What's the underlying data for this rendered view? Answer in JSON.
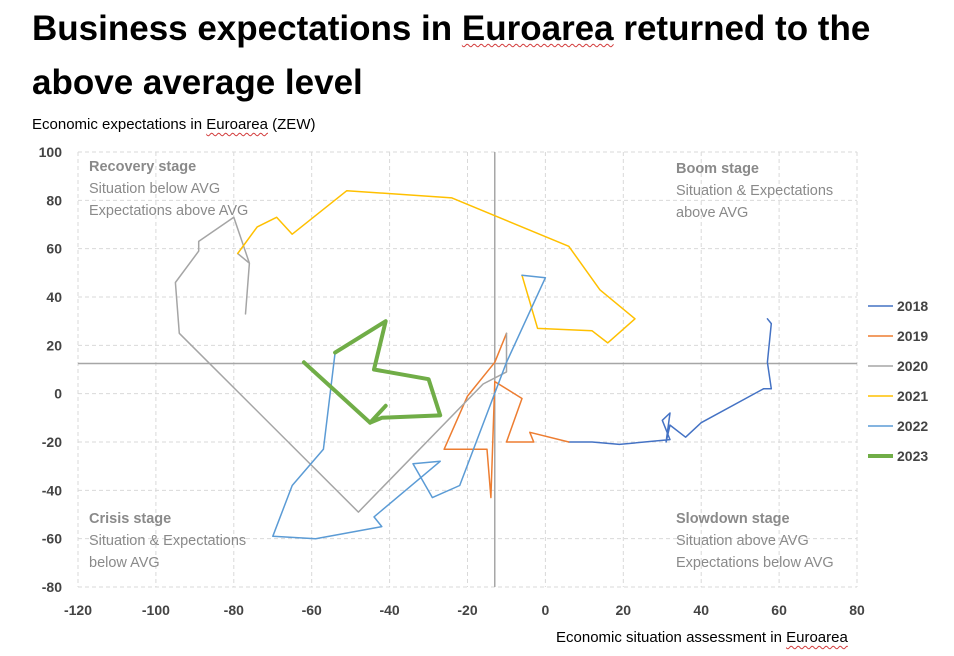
{
  "title_parts": [
    "Business expectations in ",
    "Euroarea",
    " returned to the above average level"
  ],
  "subtitle_parts": [
    "Economic expectations in ",
    "Euroarea",
    " (ZEW)"
  ],
  "xlabel_parts": [
    "Economic situation assessment in ",
    "Euroarea"
  ],
  "quadrants": {
    "recovery": {
      "title": "Recovery stage",
      "lines": [
        "Situation below AVG",
        "Expectations above AVG"
      ]
    },
    "boom": {
      "title": "Boom stage",
      "lines": [
        "Situation & Expectations",
        "above AVG"
      ]
    },
    "crisis": {
      "title": "Crisis stage",
      "lines": [
        "Situation & Expectations",
        "below AVG"
      ]
    },
    "slowdown": {
      "title": "Slowdown stage",
      "lines": [
        "Situation above AVG",
        "Expectations below AVG"
      ]
    }
  },
  "chart_data": {
    "type": "line",
    "xlabel": "Economic situation assessment in Euroarea",
    "ylabel": "Economic expectations in Euroarea (ZEW)",
    "xlim": [
      -120,
      80
    ],
    "ylim": [
      -80,
      100
    ],
    "xticks": [
      -120,
      -100,
      -80,
      -60,
      -40,
      -20,
      0,
      20,
      40,
      60,
      80
    ],
    "yticks": [
      100,
      80,
      60,
      40,
      20,
      0,
      -20,
      -40,
      -60,
      -80
    ],
    "grid": true,
    "legend_position": "right",
    "avg_lines": {
      "x": -13,
      "y": 12.5
    },
    "series": [
      {
        "name": "2018",
        "color": "#4472c4",
        "width": 1.5,
        "points": [
          [
            57,
            31
          ],
          [
            58,
            29
          ],
          [
            57,
            13
          ],
          [
            58,
            2
          ],
          [
            56,
            2
          ],
          [
            40,
            -12
          ],
          [
            36,
            -18
          ],
          [
            32,
            -13
          ],
          [
            31,
            -20
          ],
          [
            32,
            -8
          ],
          [
            30,
            -11
          ],
          [
            32,
            -19
          ],
          [
            19,
            -21
          ],
          [
            12,
            -20
          ],
          [
            6,
            -20
          ]
        ]
      },
      {
        "name": "2019",
        "color": "#ed7d31",
        "width": 1.5,
        "points": [
          [
            6,
            -20
          ],
          [
            -4,
            -16
          ],
          [
            -3,
            -20
          ],
          [
            -10,
            -20
          ],
          [
            -6,
            -2
          ],
          [
            -13,
            5
          ],
          [
            -14,
            -43
          ],
          [
            -15,
            -23
          ],
          [
            -26,
            -23
          ],
          [
            -20,
            -1
          ],
          [
            -13,
            13
          ],
          [
            -10,
            25
          ]
        ]
      },
      {
        "name": "2020",
        "color": "#a5a5a5",
        "width": 1.5,
        "points": [
          [
            -10,
            25
          ],
          [
            -10,
            9
          ],
          [
            -16,
            4
          ],
          [
            -48,
            -49
          ],
          [
            -94,
            25
          ],
          [
            -95,
            46
          ],
          [
            -89,
            59
          ],
          [
            -89,
            63
          ],
          [
            -80,
            73
          ],
          [
            -76,
            54
          ],
          [
            -77,
            33
          ],
          [
            -76,
            54
          ],
          [
            -79,
            58
          ]
        ]
      },
      {
        "name": "2021",
        "color": "#ffc000",
        "width": 1.5,
        "points": [
          [
            -79,
            58
          ],
          [
            -74,
            69
          ],
          [
            -69,
            73
          ],
          [
            -65,
            66
          ],
          [
            -51,
            84
          ],
          [
            -24,
            81
          ],
          [
            6,
            61
          ],
          [
            14,
            43
          ],
          [
            23,
            31
          ],
          [
            16,
            21
          ],
          [
            12,
            26
          ],
          [
            -2,
            27
          ],
          [
            -6,
            49
          ]
        ]
      },
      {
        "name": "2022",
        "color": "#5b9bd5",
        "width": 1.5,
        "points": [
          [
            -6,
            49
          ],
          [
            0,
            48
          ],
          [
            -10,
            13
          ],
          [
            -22,
            -38
          ],
          [
            -29,
            -43
          ],
          [
            -34,
            -29
          ],
          [
            -27,
            -28
          ],
          [
            -44,
            -51
          ],
          [
            -42,
            -55
          ],
          [
            -59,
            -60
          ],
          [
            -70,
            -59
          ],
          [
            -65,
            -38
          ],
          [
            -57,
            -23
          ],
          [
            -54,
            17
          ]
        ]
      },
      {
        "name": "2023",
        "color": "#70ad47",
        "width": 4,
        "points": [
          [
            -54,
            17
          ],
          [
            -41,
            30
          ],
          [
            -44,
            10
          ],
          [
            -30,
            6
          ],
          [
            -27,
            -9
          ],
          [
            -42,
            -10
          ],
          [
            -45,
            -12
          ],
          [
            -41,
            -5
          ],
          [
            -45,
            -12
          ],
          [
            -62,
            13
          ]
        ]
      }
    ]
  }
}
